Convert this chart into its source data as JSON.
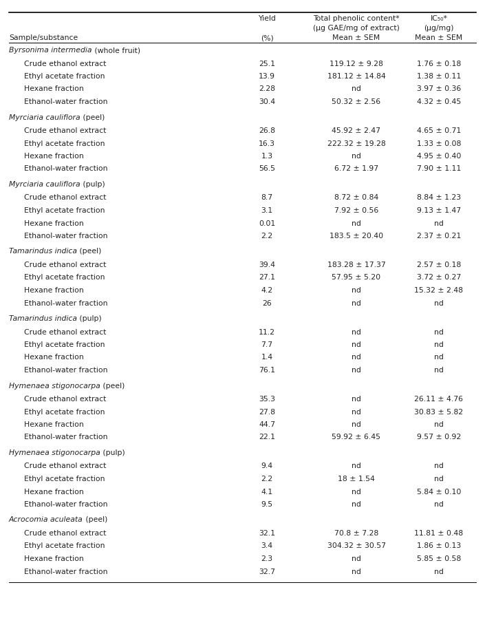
{
  "header_row1": [
    "",
    "Yield",
    "Total phenolic content*",
    "IC₅₀*"
  ],
  "header_row2": [
    "",
    "",
    "(μg GAE/mg of extract)",
    "(μg/mg)"
  ],
  "header_row3": [
    "Sample/substance",
    "(%)",
    "Mean ± SEM",
    "Mean ± SEM"
  ],
  "sections": [
    {
      "section_italic": "Byrsonima intermedia",
      "section_normal": " (whole fruit)",
      "rows": [
        [
          "Crude ethanol extract",
          "25.1",
          "119.12 ± 9.28",
          "1.76 ± 0.18"
        ],
        [
          "Ethyl acetate fraction",
          "13.9",
          "181.12 ± 14.84",
          "1.38 ± 0.11"
        ],
        [
          "Hexane fraction",
          "2.28",
          "nd",
          "3.97 ± 0.36"
        ],
        [
          "Ethanol-water fraction",
          "30.4",
          "50.32 ± 2.56",
          "4.32 ± 0.45"
        ]
      ]
    },
    {
      "section_italic": "Myrciaria cauliflora",
      "section_normal": " (peel)",
      "rows": [
        [
          "Crude ethanol extract",
          "26.8",
          "45.92 ± 2.47",
          "4.65 ± 0.71"
        ],
        [
          "Ethyl acetate fraction",
          "16.3",
          "222.32 ± 19.28",
          "1.33 ± 0.08"
        ],
        [
          "Hexane fraction",
          "1.3",
          "nd",
          "4.95 ± 0.40"
        ],
        [
          "Ethanol-water fraction",
          "56.5",
          "6.72 ± 1.97",
          "7.90 ± 1.11"
        ]
      ]
    },
    {
      "section_italic": "Myrciaria cauliflora",
      "section_normal": " (pulp)",
      "rows": [
        [
          "Crude ethanol extract",
          "8.7",
          "8.72 ± 0.84",
          "8.84 ± 1.23"
        ],
        [
          "Ethyl acetate fraction",
          "3.1",
          "7.92 ± 0.56",
          "9.13 ± 1.47"
        ],
        [
          "Hexane fraction",
          "0.01",
          "nd",
          "nd"
        ],
        [
          "Ethanol-water fraction",
          "2.2",
          "183.5 ± 20.40",
          "2.37 ± 0.21"
        ]
      ]
    },
    {
      "section_italic": "Tamarindus indica",
      "section_normal": " (peel)",
      "rows": [
        [
          "Crude ethanol extract",
          "39.4",
          "183.28 ± 17.37",
          "2.57 ± 0.18"
        ],
        [
          "Ethyl acetate fraction",
          "27.1",
          "57.95 ± 5.20",
          "3.72 ± 0.27"
        ],
        [
          "Hexane fraction",
          "4.2",
          "nd",
          "15.32 ± 2.48"
        ],
        [
          "Ethanol-water fraction",
          "26",
          "nd",
          "nd"
        ]
      ]
    },
    {
      "section_italic": "Tamarindus indica",
      "section_normal": " (pulp)",
      "rows": [
        [
          "Crude ethanol extract",
          "11.2",
          "nd",
          "nd"
        ],
        [
          "Ethyl acetate fraction",
          "7.7",
          "nd",
          "nd"
        ],
        [
          "Hexane fraction",
          "1.4",
          "nd",
          "nd"
        ],
        [
          "Ethanol-water fraction",
          "76.1",
          "nd",
          "nd"
        ]
      ]
    },
    {
      "section_italic": "Hymenaea stigonocarpa",
      "section_normal": " (peel)",
      "rows": [
        [
          "Crude ethanol extract",
          "35.3",
          "nd",
          "26.11 ± 4.76"
        ],
        [
          "Ethyl acetate fraction",
          "27.8",
          "nd",
          "30.83 ± 5.82"
        ],
        [
          "Hexane fraction",
          "44.7",
          "nd",
          "nd"
        ],
        [
          "Ethanol-water fraction",
          "22.1",
          "59.92 ± 6.45",
          "9.57 ± 0.92"
        ]
      ]
    },
    {
      "section_italic": "Hymenaea stigonocarpa",
      "section_normal": " (pulp)",
      "rows": [
        [
          "Crude ethanol extract",
          "9.4",
          "nd",
          "nd"
        ],
        [
          "Ethyl acetate fraction",
          "2.2",
          "18 ± 1.54",
          "nd"
        ],
        [
          "Hexane fraction",
          "4.1",
          "nd",
          "5.84 ± 0.10"
        ],
        [
          "Ethanol-water fraction",
          "9.5",
          "nd",
          "nd"
        ]
      ]
    },
    {
      "section_italic": "Acrocomia aculeata",
      "section_normal": " (peel)",
      "rows": [
        [
          "Crude ethanol extract",
          "32.1",
          "70.8 ± 7.28",
          "11.81 ± 0.48"
        ],
        [
          "Ethyl acetate fraction",
          "3.4",
          "304.32 ± 30.57",
          "1.86 ± 0.13"
        ],
        [
          "Hexane fraction",
          "2.3",
          "nd",
          "5.85 ± 0.58"
        ],
        [
          "Ethanol-water fraction",
          "32.7",
          "nd",
          "nd"
        ]
      ]
    }
  ],
  "bg_color": "#ffffff",
  "text_color": "#222222",
  "font_size": 7.8,
  "header_font_size": 7.8
}
